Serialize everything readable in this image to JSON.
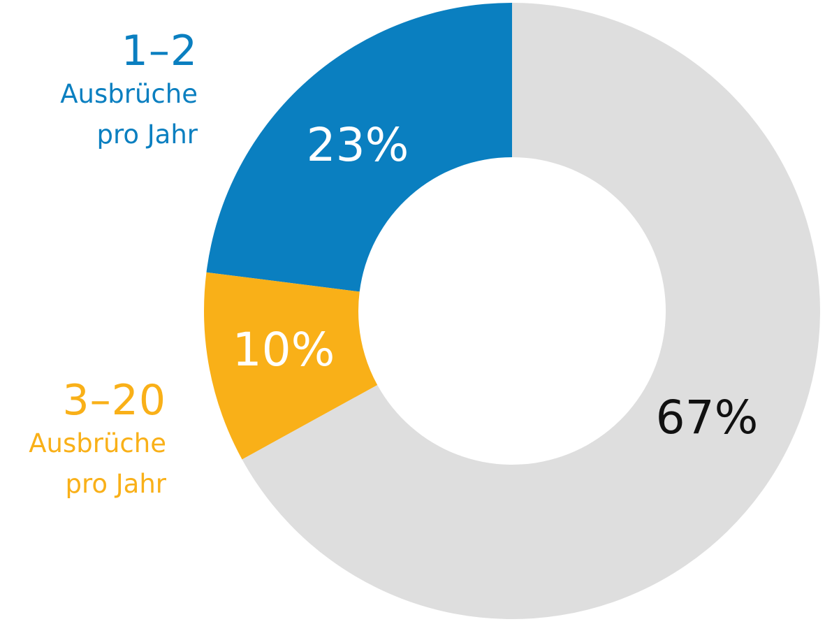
{
  "chart_data": {
    "type": "pie",
    "donut": true,
    "categories": [
      "1–2 Ausbrüche pro Jahr",
      "3–20 Ausbrüche pro Jahr",
      ""
    ],
    "values": [
      23,
      10,
      67
    ],
    "value_labels": [
      "23%",
      "10%",
      "67%"
    ],
    "colors": [
      "#0a7fc0",
      "#f9b018",
      "#dedede"
    ],
    "label_colors": [
      "#ffffff",
      "#ffffff",
      "#111111"
    ],
    "legend": [
      {
        "range": "1–2",
        "desc_line1": "Ausbrüche",
        "desc_line2": "pro Jahr",
        "color": "#0a7fc0"
      },
      {
        "range": "3–20",
        "desc_line1": "Ausbrüche",
        "desc_line2": "pro Jahr",
        "color": "#f9b018"
      }
    ],
    "legend_placement": "left",
    "title": "",
    "xlabel": "",
    "ylabel": ""
  }
}
